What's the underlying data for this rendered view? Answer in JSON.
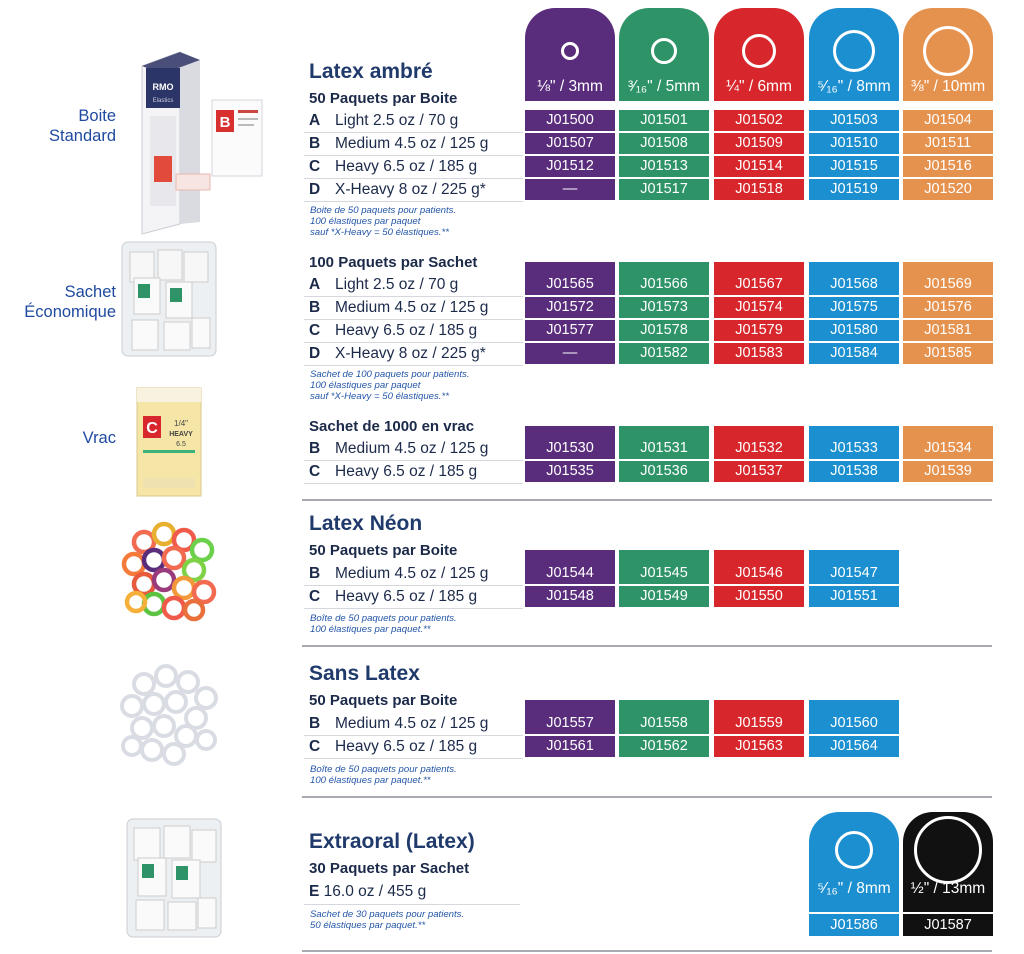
{
  "colors": {
    "purple": "#5a2d7c",
    "green": "#2e9467",
    "red": "#d7272c",
    "blue": "#1b8fcf",
    "orange": "#e6924f",
    "black": "#111111"
  },
  "sizes": [
    "⅛\" / 3mm",
    "³⁄₁₆\" / 5mm",
    "¼\" / 6mm",
    "⁵⁄₁₆\" / 8mm",
    "⅜\" / 10mm"
  ],
  "side_labels": {
    "standard": [
      "Boite",
      "Standard"
    ],
    "economique": [
      "Sachet",
      "Économique"
    ],
    "vrac": "Vrac"
  },
  "photos": {
    "box_brand": "RMO",
    "box_side": "Elastics",
    "packet_letter": "B",
    "vrac_letter": "C",
    "vrac_size": "1/4\"",
    "vrac_weight": "HEAVY",
    "vrac_oz": "6.5"
  },
  "latex_ambre": {
    "title": "Latex ambré",
    "box": {
      "subtitle": "50 Paquets par Boite",
      "rows": [
        {
          "letter": "A",
          "name": "Light",
          "spec": "2.5 oz / 70 g",
          "codes": [
            "J01500",
            "J01501",
            "J01502",
            "J01503",
            "J01504"
          ]
        },
        {
          "letter": "B",
          "name": "Medium",
          "spec": "4.5 oz / 125 g",
          "codes": [
            "J01507",
            "J01508",
            "J01509",
            "J01510",
            "J01511"
          ]
        },
        {
          "letter": "C",
          "name": "Heavy",
          "spec": "6.5 oz / 185 g",
          "codes": [
            "J01512",
            "J01513",
            "J01514",
            "J01515",
            "J01516"
          ]
        },
        {
          "letter": "D",
          "name": "X-Heavy",
          "spec": "8 oz / 225 g*",
          "codes": [
            "—",
            "J01517",
            "J01518",
            "J01519",
            "J01520"
          ]
        }
      ],
      "note": [
        "Boite de 50 paquets pour patients.",
        "100 élastiques par paquet",
        "sauf *X-Heavy = 50 élastiques.**"
      ]
    },
    "sachet": {
      "subtitle": "100 Paquets par Sachet",
      "rows": [
        {
          "letter": "A",
          "name": "Light",
          "spec": "2.5 oz / 70 g",
          "codes": [
            "J01565",
            "J01566",
            "J01567",
            "J01568",
            "J01569"
          ]
        },
        {
          "letter": "B",
          "name": "Medium",
          "spec": "4.5 oz / 125 g",
          "codes": [
            "J01572",
            "J01573",
            "J01574",
            "J01575",
            "J01576"
          ]
        },
        {
          "letter": "C",
          "name": "Heavy",
          "spec": "6.5 oz / 185 g",
          "codes": [
            "J01577",
            "J01578",
            "J01579",
            "J01580",
            "J01581"
          ]
        },
        {
          "letter": "D",
          "name": "X-Heavy",
          "spec": "8 oz / 225 g*",
          "codes": [
            "—",
            "J01582",
            "J01583",
            "J01584",
            "J01585"
          ]
        }
      ],
      "note": [
        "Sachet de 100 paquets pour patients.",
        "100 élastiques par paquet",
        "sauf *X-Heavy = 50 élastiques.**"
      ]
    },
    "vrac": {
      "subtitle": "Sachet de 1000 en vrac",
      "rows": [
        {
          "letter": "B",
          "name": "Medium",
          "spec": "4.5 oz / 125 g",
          "codes": [
            "J01530",
            "J01531",
            "J01532",
            "J01533",
            "J01534"
          ]
        },
        {
          "letter": "C",
          "name": "Heavy",
          "spec": "6.5 oz / 185 g",
          "codes": [
            "J01535",
            "J01536",
            "J01537",
            "J01538",
            "J01539"
          ]
        }
      ]
    }
  },
  "latex_neon": {
    "title": "Latex Néon",
    "subtitle": "50 Paquets par Boite",
    "rows": [
      {
        "letter": "B",
        "name": "Medium",
        "spec": "4.5 oz / 125 g",
        "codes": [
          "J01544",
          "J01545",
          "J01546",
          "J01547"
        ]
      },
      {
        "letter": "C",
        "name": "Heavy",
        "spec": "6.5 oz / 185 g",
        "codes": [
          "J01548",
          "J01549",
          "J01550",
          "J01551"
        ]
      }
    ],
    "note": [
      "Boîte de 50 paquets pour patients.",
      "100 élastiques par paquet.**"
    ]
  },
  "sans_latex": {
    "title": "Sans Latex",
    "subtitle": "50 Paquets par Boite",
    "rows": [
      {
        "letter": "B",
        "name": "Medium",
        "spec": "4.5 oz / 125 g",
        "codes": [
          "J01557",
          "J01558",
          "J01559",
          "J01560"
        ]
      },
      {
        "letter": "C",
        "name": "Heavy",
        "spec": "6.5 oz / 185 g",
        "codes": [
          "J01561",
          "J01562",
          "J01563",
          "J01564"
        ]
      }
    ],
    "note": [
      "Boîte de 50 paquets pour patients.",
      "100 élastiques par paquet.**"
    ]
  },
  "extraoral": {
    "title": "Extraoral (Latex)",
    "subtitle": "30 Paquets par Sachet",
    "row": {
      "letter": "E",
      "spec": "16.0 oz / 455 g"
    },
    "sizes": [
      "⁵⁄₁₆\" / 8mm",
      "½\" / 13mm"
    ],
    "codes": [
      "J01586",
      "J01587"
    ],
    "note": [
      "Sachet de 30 paquets pour patients.",
      "50 élastiques par paquet.**"
    ]
  }
}
